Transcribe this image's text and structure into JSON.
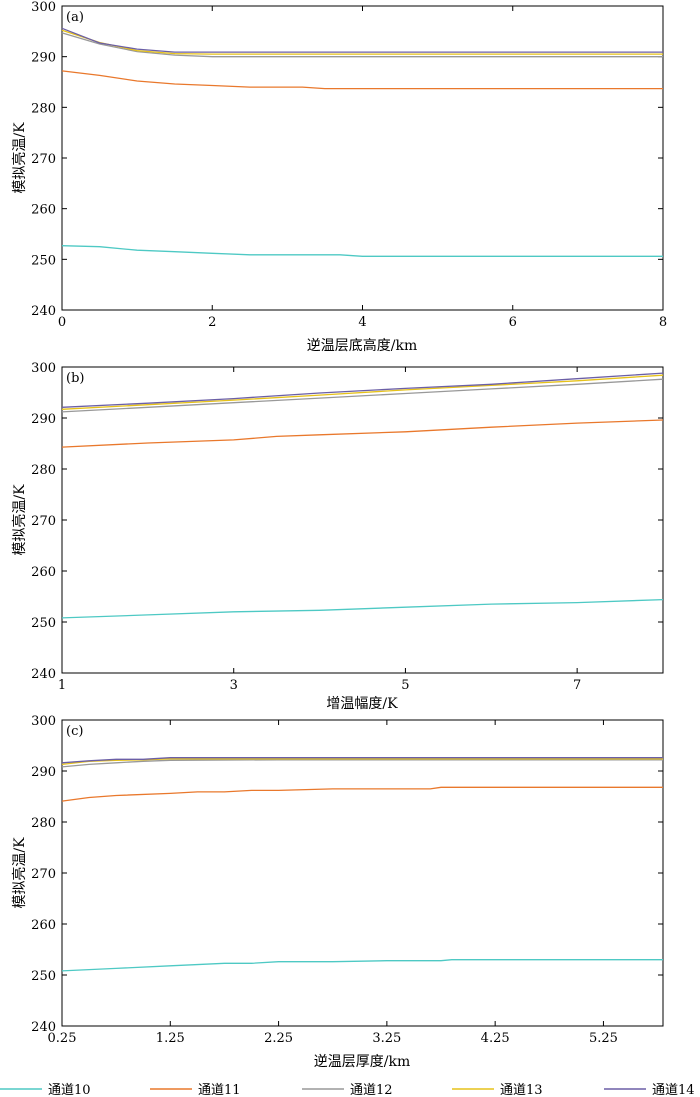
{
  "chart_data": [
    {
      "type": "line",
      "panel_label": "(a)",
      "xlabel": "逆温层底高度/km",
      "ylabel": "模拟亮温/K",
      "xlim": [
        0,
        8
      ],
      "ylim": [
        240,
        300
      ],
      "xticks": [
        0,
        2,
        4,
        6,
        8
      ],
      "xtick_labels": [
        "0",
        "2",
        "4",
        "6",
        "8"
      ],
      "yticks": [
        240,
        250,
        260,
        270,
        280,
        290,
        300
      ],
      "ytick_labels": [
        "240",
        "250",
        "260",
        "270",
        "280",
        "290",
        "300"
      ],
      "series": [
        {
          "name": "通道10",
          "color": "#4ec9c4",
          "x": [
            0,
            0.5,
            1,
            1.5,
            2,
            2.5,
            3,
            3.7,
            4,
            5,
            6,
            7,
            8
          ],
          "y": [
            252.7,
            252.5,
            251.8,
            251.5,
            251.2,
            250.9,
            250.9,
            250.9,
            250.6,
            250.6,
            250.6,
            250.6,
            250.6
          ]
        },
        {
          "name": "通道11",
          "color": "#e9782c",
          "x": [
            0,
            0.5,
            1,
            1.5,
            2,
            2.5,
            3.2,
            3.5,
            4,
            5,
            6,
            7,
            8
          ],
          "y": [
            287.2,
            286.3,
            285.2,
            284.6,
            284.3,
            284.0,
            284.0,
            283.7,
            283.7,
            283.7,
            283.7,
            283.7,
            283.7
          ]
        },
        {
          "name": "通道12",
          "color": "#999999",
          "x": [
            0,
            0.5,
            1,
            1.5,
            2,
            3,
            4,
            5,
            6,
            7,
            8
          ],
          "y": [
            294.7,
            292.5,
            291.0,
            290.3,
            290.0,
            290.0,
            290.0,
            290.0,
            290.0,
            290.0,
            290.0
          ]
        },
        {
          "name": "通道13",
          "color": "#e6c21a",
          "x": [
            0,
            0.5,
            1,
            1.5,
            2,
            3,
            4,
            5,
            6,
            7,
            8
          ],
          "y": [
            295.2,
            292.8,
            291.2,
            290.6,
            290.5,
            290.5,
            290.5,
            290.5,
            290.5,
            290.5,
            290.5
          ]
        },
        {
          "name": "通道14",
          "color": "#6b5fa6",
          "x": [
            0,
            0.5,
            1,
            1.5,
            2,
            3,
            4,
            5,
            6,
            7,
            8
          ],
          "y": [
            295.6,
            292.7,
            291.5,
            290.9,
            290.9,
            290.9,
            290.9,
            290.9,
            290.9,
            290.9,
            290.9
          ]
        }
      ]
    },
    {
      "type": "line",
      "panel_label": "(b)",
      "xlabel": "增温幅度/K",
      "ylabel": "模拟亮温/K",
      "xlim": [
        1,
        8
      ],
      "ylim": [
        240,
        300
      ],
      "xticks": [
        1,
        3,
        5,
        7
      ],
      "xtick_labels": [
        "1",
        "3",
        "5",
        "7"
      ],
      "yticks": [
        240,
        250,
        260,
        270,
        280,
        290,
        300
      ],
      "ytick_labels": [
        "240",
        "250",
        "260",
        "270",
        "280",
        "290",
        "300"
      ],
      "series": [
        {
          "name": "通道10",
          "color": "#4ec9c4",
          "x": [
            1,
            2,
            3,
            4,
            5,
            6,
            7,
            8
          ],
          "y": [
            250.8,
            251.4,
            252.0,
            252.3,
            252.9,
            253.5,
            253.8,
            254.4
          ]
        },
        {
          "name": "通道11",
          "color": "#e9782c",
          "x": [
            1,
            2,
            3,
            3.5,
            4,
            5,
            6,
            7,
            8
          ],
          "y": [
            284.3,
            285.1,
            285.7,
            286.4,
            286.7,
            287.3,
            288.2,
            289.0,
            289.6
          ]
        },
        {
          "name": "通道12",
          "color": "#999999",
          "x": [
            1,
            2,
            3,
            4,
            5,
            6,
            7,
            8
          ],
          "y": [
            291.2,
            292.1,
            293.0,
            293.9,
            294.8,
            295.7,
            296.6,
            297.6
          ]
        },
        {
          "name": "通道13",
          "color": "#e6c21a",
          "x": [
            1,
            2,
            3,
            4,
            5,
            6,
            7,
            8
          ],
          "y": [
            291.7,
            292.6,
            293.5,
            294.5,
            295.5,
            296.4,
            297.3,
            298.4
          ]
        },
        {
          "name": "通道14",
          "color": "#6b5fa6",
          "x": [
            1,
            2,
            3,
            4,
            5,
            6,
            7,
            8
          ],
          "y": [
            292.1,
            292.9,
            293.8,
            294.9,
            295.8,
            296.6,
            297.7,
            298.8
          ]
        }
      ]
    },
    {
      "type": "line",
      "panel_label": "(c)",
      "xlabel": "逆温层厚度/km",
      "ylabel": "模拟亮温/K",
      "xlim": [
        0.25,
        5.8
      ],
      "ylim": [
        240,
        300
      ],
      "xticks": [
        0.25,
        1.25,
        2.25,
        3.25,
        4.25,
        5.25
      ],
      "xtick_labels": [
        "0.25",
        "1.25",
        "2.25",
        "3.25",
        "4.25",
        "5.25"
      ],
      "yticks": [
        240,
        250,
        260,
        270,
        280,
        290,
        300
      ],
      "ytick_labels": [
        "240",
        "250",
        "260",
        "270",
        "280",
        "290",
        "300"
      ],
      "series": [
        {
          "name": "通道10",
          "color": "#4ec9c4",
          "x": [
            0.25,
            0.75,
            1.25,
            1.75,
            2.0,
            2.25,
            2.75,
            3.25,
            3.75,
            3.85,
            4.25,
            5.25,
            5.8
          ],
          "y": [
            250.8,
            251.3,
            251.8,
            252.3,
            252.3,
            252.6,
            252.6,
            252.8,
            252.8,
            253.0,
            253.0,
            253.0,
            253.0
          ]
        },
        {
          "name": "通道11",
          "color": "#e9782c",
          "x": [
            0.25,
            0.5,
            0.75,
            1.25,
            1.5,
            1.75,
            2.0,
            2.25,
            2.75,
            3.25,
            3.65,
            3.75,
            4.25,
            5.25,
            5.8
          ],
          "y": [
            284.1,
            284.8,
            285.2,
            285.6,
            285.9,
            285.9,
            286.2,
            286.2,
            286.5,
            286.5,
            286.5,
            286.8,
            286.8,
            286.8,
            286.8
          ]
        },
        {
          "name": "通道12",
          "color": "#999999",
          "x": [
            0.25,
            0.5,
            0.75,
            1.0,
            1.25,
            2.25,
            3.25,
            4.25,
            5.25,
            5.8
          ],
          "y": [
            290.8,
            291.3,
            291.6,
            291.9,
            292.1,
            292.2,
            292.2,
            292.2,
            292.2,
            292.2
          ]
        },
        {
          "name": "通道13",
          "color": "#e6c21a",
          "x": [
            0.25,
            0.5,
            0.75,
            1.0,
            1.25,
            2.25,
            3.25,
            4.25,
            5.25,
            5.8
          ],
          "y": [
            291.3,
            291.9,
            292.1,
            292.2,
            292.4,
            292.4,
            292.4,
            292.4,
            292.4,
            292.4
          ]
        },
        {
          "name": "通道14",
          "color": "#6b5fa6",
          "x": [
            0.25,
            0.5,
            0.75,
            1.0,
            1.25,
            2.25,
            2.75,
            3.25,
            4.25,
            5.25,
            5.8
          ],
          "y": [
            291.6,
            292.0,
            292.3,
            292.3,
            292.6,
            292.6,
            292.6,
            292.6,
            292.6,
            292.6,
            292.6
          ]
        }
      ]
    }
  ],
  "legend": {
    "placement": "bottom",
    "entries": [
      {
        "name": "通道10",
        "color": "#4ec9c4"
      },
      {
        "name": "通道11",
        "color": "#e9782c"
      },
      {
        "name": "通道12",
        "color": "#999999"
      },
      {
        "name": "通道13",
        "color": "#e6c21a"
      },
      {
        "name": "通道14",
        "color": "#6b5fa6"
      }
    ]
  }
}
